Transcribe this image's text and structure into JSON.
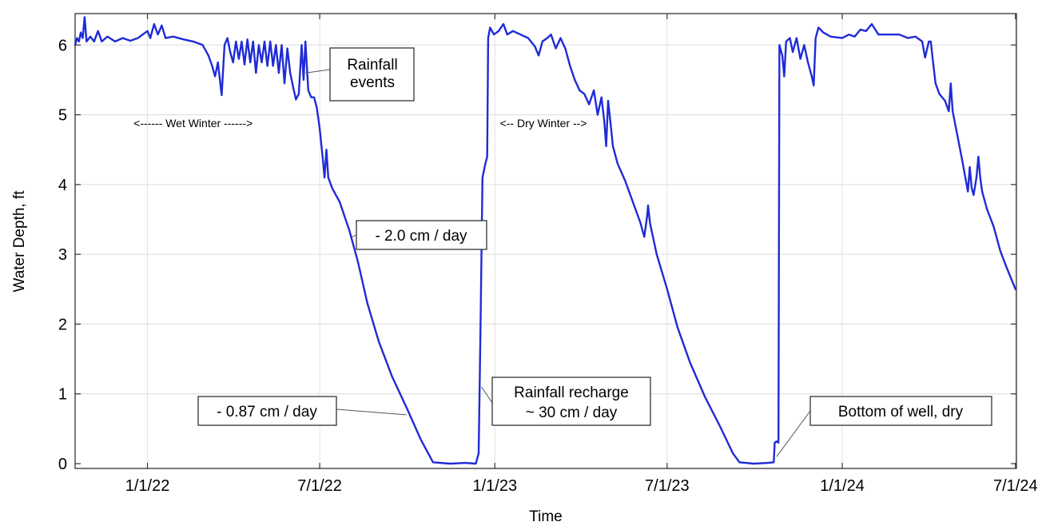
{
  "chart_data": {
    "type": "line",
    "title": "",
    "xlabel": "Time",
    "ylabel": "Water Depth,  ft",
    "x_tick_labels": [
      "1/1/22",
      "7/1/22",
      "1/1/23",
      "7/1/23",
      "1/1/24",
      "7/1/24"
    ],
    "y_tick_labels": [
      "0",
      "1",
      "2",
      "3",
      "4",
      "5",
      "6"
    ],
    "xlim": [
      "2021-10-17",
      "2024-07-02"
    ],
    "ylim": [
      0,
      6.45
    ],
    "grid": true,
    "legend": "none",
    "line_color": "#1f2bd6",
    "series": [
      {
        "points": [
          [
            "2021-10-17",
            6.0
          ],
          [
            "2021-10-19",
            6.1
          ],
          [
            "2021-10-21",
            6.05
          ],
          [
            "2021-10-23",
            6.18
          ],
          [
            "2021-10-25",
            6.1
          ],
          [
            "2021-10-27",
            6.4
          ],
          [
            "2021-10-29",
            6.05
          ],
          [
            "2021-11-02",
            6.12
          ],
          [
            "2021-11-06",
            6.05
          ],
          [
            "2021-11-10",
            6.2
          ],
          [
            "2021-11-14",
            6.05
          ],
          [
            "2021-11-20",
            6.12
          ],
          [
            "2021-11-28",
            6.05
          ],
          [
            "2021-12-06",
            6.1
          ],
          [
            "2021-12-14",
            6.06
          ],
          [
            "2021-12-22",
            6.1
          ],
          [
            "2022-01-01",
            6.2
          ],
          [
            "2022-01-04",
            6.1
          ],
          [
            "2022-01-08",
            6.3
          ],
          [
            "2022-01-12",
            6.15
          ],
          [
            "2022-01-16",
            6.28
          ],
          [
            "2022-01-20",
            6.1
          ],
          [
            "2022-01-28",
            6.12
          ],
          [
            "2022-02-08",
            6.08
          ],
          [
            "2022-02-18",
            6.05
          ],
          [
            "2022-02-28",
            6.0
          ],
          [
            "2022-03-06",
            5.85
          ],
          [
            "2022-03-10",
            5.7
          ],
          [
            "2022-03-13",
            5.55
          ],
          [
            "2022-03-16",
            5.75
          ],
          [
            "2022-03-20",
            5.28
          ],
          [
            "2022-03-23",
            6.0
          ],
          [
            "2022-03-26",
            6.1
          ],
          [
            "2022-03-29",
            5.9
          ],
          [
            "2022-04-01",
            5.75
          ],
          [
            "2022-04-04",
            6.05
          ],
          [
            "2022-04-07",
            5.8
          ],
          [
            "2022-04-10",
            6.05
          ],
          [
            "2022-04-13",
            5.72
          ],
          [
            "2022-04-16",
            6.08
          ],
          [
            "2022-04-19",
            5.75
          ],
          [
            "2022-04-22",
            6.05
          ],
          [
            "2022-04-25",
            5.6
          ],
          [
            "2022-04-28",
            6.0
          ],
          [
            "2022-05-01",
            5.75
          ],
          [
            "2022-05-04",
            6.05
          ],
          [
            "2022-05-07",
            5.7
          ],
          [
            "2022-05-10",
            6.05
          ],
          [
            "2022-05-13",
            5.7
          ],
          [
            "2022-05-16",
            6.0
          ],
          [
            "2022-05-19",
            5.6
          ],
          [
            "2022-05-22",
            6.0
          ],
          [
            "2022-05-25",
            5.45
          ],
          [
            "2022-05-28",
            5.95
          ],
          [
            "2022-05-31",
            5.6
          ],
          [
            "2022-06-03",
            5.4
          ],
          [
            "2022-06-06",
            5.22
          ],
          [
            "2022-06-09",
            5.3
          ],
          [
            "2022-06-12",
            6.0
          ],
          [
            "2022-06-14",
            5.5
          ],
          [
            "2022-06-16",
            6.05
          ],
          [
            "2022-06-19",
            5.35
          ],
          [
            "2022-06-22",
            5.25
          ],
          [
            "2022-06-25",
            5.25
          ],
          [
            "2022-06-28",
            5.1
          ],
          [
            "2022-07-01",
            4.8
          ],
          [
            "2022-07-04",
            4.4
          ],
          [
            "2022-07-06",
            4.1
          ],
          [
            "2022-07-08",
            4.5
          ],
          [
            "2022-07-10",
            4.1
          ],
          [
            "2022-07-14",
            3.95
          ],
          [
            "2022-07-22",
            3.75
          ],
          [
            "2022-08-01",
            3.35
          ],
          [
            "2022-08-10",
            2.9
          ],
          [
            "2022-08-20",
            2.3
          ],
          [
            "2022-09-01",
            1.75
          ],
          [
            "2022-09-15",
            1.25
          ],
          [
            "2022-10-01",
            0.78
          ],
          [
            "2022-10-15",
            0.35
          ],
          [
            "2022-10-28",
            0.02
          ],
          [
            "2022-11-15",
            0.0
          ],
          [
            "2022-12-01",
            0.01
          ],
          [
            "2022-12-12",
            0.0
          ],
          [
            "2022-12-15",
            0.15
          ],
          [
            "2022-12-17",
            2.0
          ],
          [
            "2022-12-19",
            4.1
          ],
          [
            "2022-12-22",
            4.3
          ],
          [
            "2022-12-24",
            4.4
          ],
          [
            "2022-12-25",
            6.1
          ],
          [
            "2022-12-27",
            6.25
          ],
          [
            "2022-12-31",
            6.15
          ],
          [
            "2023-01-05",
            6.2
          ],
          [
            "2023-01-10",
            6.3
          ],
          [
            "2023-01-14",
            6.15
          ],
          [
            "2023-01-20",
            6.2
          ],
          [
            "2023-01-28",
            6.15
          ],
          [
            "2023-02-05",
            6.1
          ],
          [
            "2023-02-12",
            5.98
          ],
          [
            "2023-02-16",
            5.85
          ],
          [
            "2023-02-20",
            6.05
          ],
          [
            "2023-02-25",
            6.1
          ],
          [
            "2023-03-01",
            6.15
          ],
          [
            "2023-03-06",
            5.95
          ],
          [
            "2023-03-11",
            6.1
          ],
          [
            "2023-03-16",
            5.95
          ],
          [
            "2023-03-21",
            5.7
          ],
          [
            "2023-03-26",
            5.5
          ],
          [
            "2023-03-31",
            5.35
          ],
          [
            "2023-04-05",
            5.3
          ],
          [
            "2023-04-10",
            5.15
          ],
          [
            "2023-04-15",
            5.35
          ],
          [
            "2023-04-19",
            5.0
          ],
          [
            "2023-04-23",
            5.25
          ],
          [
            "2023-04-26",
            4.9
          ],
          [
            "2023-04-28",
            4.55
          ],
          [
            "2023-04-30",
            5.2
          ],
          [
            "2023-05-02",
            4.95
          ],
          [
            "2023-05-05",
            4.55
          ],
          [
            "2023-05-10",
            4.3
          ],
          [
            "2023-05-18",
            4.05
          ],
          [
            "2023-05-26",
            3.75
          ],
          [
            "2023-06-03",
            3.45
          ],
          [
            "2023-06-07",
            3.25
          ],
          [
            "2023-06-10",
            3.55
          ],
          [
            "2023-06-11",
            3.7
          ],
          [
            "2023-06-13",
            3.45
          ],
          [
            "2023-06-20",
            3.0
          ],
          [
            "2023-07-01",
            2.5
          ],
          [
            "2023-07-12",
            1.95
          ],
          [
            "2023-07-25",
            1.45
          ],
          [
            "2023-08-10",
            0.95
          ],
          [
            "2023-08-25",
            0.55
          ],
          [
            "2023-09-08",
            0.15
          ],
          [
            "2023-09-15",
            0.02
          ],
          [
            "2023-09-30",
            0.0
          ],
          [
            "2023-10-15",
            0.01
          ],
          [
            "2023-10-21",
            0.02
          ],
          [
            "2023-10-22",
            0.3
          ],
          [
            "2023-10-24",
            0.32
          ],
          [
            "2023-10-26",
            0.3
          ],
          [
            "2023-10-27",
            6.0
          ],
          [
            "2023-10-30",
            5.85
          ],
          [
            "2023-11-01",
            5.55
          ],
          [
            "2023-11-03",
            6.05
          ],
          [
            "2023-11-07",
            6.1
          ],
          [
            "2023-11-10",
            5.9
          ],
          [
            "2023-11-14",
            6.1
          ],
          [
            "2023-11-18",
            5.8
          ],
          [
            "2023-11-22",
            6.0
          ],
          [
            "2023-11-26",
            5.75
          ],
          [
            "2023-11-30",
            5.55
          ],
          [
            "2023-12-02",
            5.42
          ],
          [
            "2023-12-04",
            6.1
          ],
          [
            "2023-12-07",
            6.25
          ],
          [
            "2023-12-12",
            6.18
          ],
          [
            "2023-12-20",
            6.12
          ],
          [
            "2024-01-01",
            6.1
          ],
          [
            "2024-01-08",
            6.15
          ],
          [
            "2024-01-14",
            6.12
          ],
          [
            "2024-01-20",
            6.22
          ],
          [
            "2024-01-26",
            6.2
          ],
          [
            "2024-02-01",
            6.3
          ],
          [
            "2024-02-08",
            6.15
          ],
          [
            "2024-02-18",
            6.15
          ],
          [
            "2024-03-01",
            6.15
          ],
          [
            "2024-03-10",
            6.1
          ],
          [
            "2024-03-18",
            6.12
          ],
          [
            "2024-03-25",
            6.05
          ],
          [
            "2024-03-28",
            5.82
          ],
          [
            "2024-04-01",
            6.05
          ],
          [
            "2024-04-03",
            6.05
          ],
          [
            "2024-04-05",
            5.8
          ],
          [
            "2024-04-08",
            5.45
          ],
          [
            "2024-04-12",
            5.3
          ],
          [
            "2024-04-18",
            5.2
          ],
          [
            "2024-04-22",
            5.05
          ],
          [
            "2024-04-24",
            5.45
          ],
          [
            "2024-04-26",
            5.05
          ],
          [
            "2024-05-01",
            4.7
          ],
          [
            "2024-05-06",
            4.35
          ],
          [
            "2024-05-10",
            4.05
          ],
          [
            "2024-05-12",
            3.9
          ],
          [
            "2024-05-14",
            4.25
          ],
          [
            "2024-05-16",
            3.95
          ],
          [
            "2024-05-18",
            3.85
          ],
          [
            "2024-05-21",
            4.1
          ],
          [
            "2024-05-23",
            4.4
          ],
          [
            "2024-05-25",
            4.1
          ],
          [
            "2024-05-27",
            3.9
          ],
          [
            "2024-06-01",
            3.65
          ],
          [
            "2024-06-08",
            3.4
          ],
          [
            "2024-06-15",
            3.05
          ],
          [
            "2024-06-22",
            2.8
          ],
          [
            "2024-07-01",
            2.5
          ]
        ]
      }
    ],
    "annotations": [
      {
        "text": "Rainfall events",
        "lines": [
          "Rainfall",
          "events"
        ],
        "date": "2022-06-16",
        "value": 5.6
      },
      {
        "text": "- 2.0 cm / day",
        "lines": [
          "- 2.0 cm / day"
        ],
        "date": "2022-08-04",
        "value": 3.25
      },
      {
        "text": "- 0.87 cm / day",
        "lines": [
          "- 0.87 cm / day"
        ],
        "date": "2022-09-30",
        "value": 0.7
      },
      {
        "text": "Rainfall recharge ~ 30 cm / day",
        "lines": [
          "Rainfall recharge",
          "~ 30 cm / day"
        ],
        "date": "2022-12-18",
        "value": 1.1
      },
      {
        "text": "Bottom of well, dry",
        "lines": [
          "Bottom of well, dry"
        ],
        "date": "2023-10-24",
        "value": 0.1
      }
    ],
    "range_labels": [
      {
        "text": "<------ Wet Winter ------>",
        "date": "2022-02-18",
        "value": 4.88
      },
      {
        "text": "<-- Dry Winter -->",
        "date": "2023-02-21",
        "value": 4.88
      }
    ]
  }
}
